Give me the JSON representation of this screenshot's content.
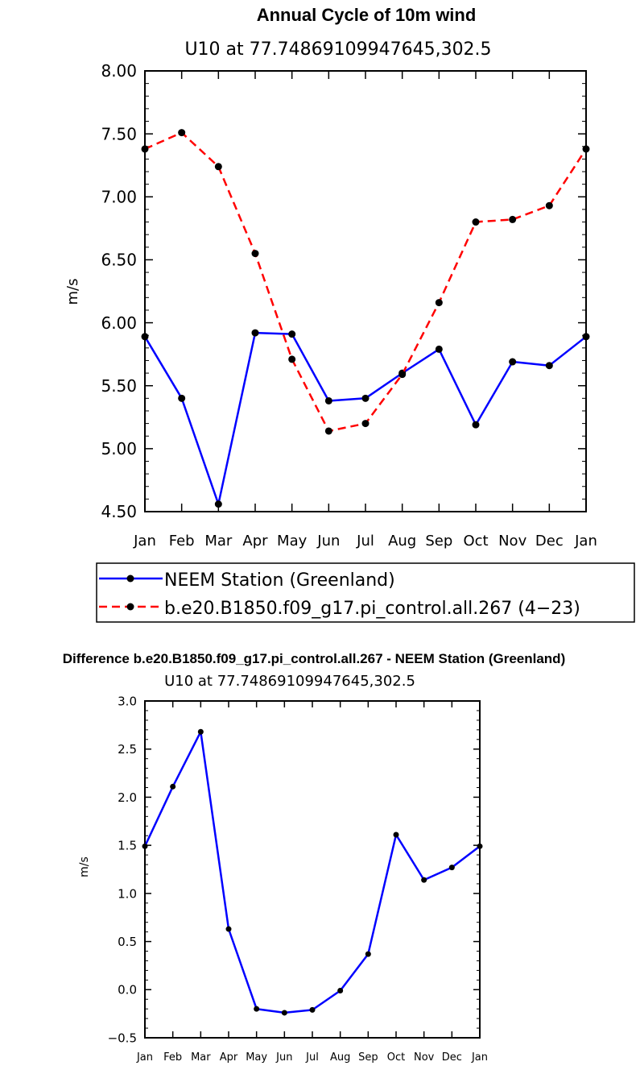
{
  "chart_data": [
    {
      "type": "line",
      "title": "Annual Cycle of 10m wind",
      "subtitle": "U10 at 77.74869109947645,302.5",
      "ylabel": "m/s",
      "xlabel": "",
      "categories": [
        "Jan",
        "Feb",
        "Mar",
        "Apr",
        "May",
        "Jun",
        "Jul",
        "Aug",
        "Sep",
        "Oct",
        "Nov",
        "Dec",
        "Jan"
      ],
      "ylim": [
        4.5,
        8.0
      ],
      "yticks": [
        "4.50",
        "5.00",
        "5.50",
        "6.00",
        "6.50",
        "7.00",
        "7.50",
        "8.00"
      ],
      "ytick_values": [
        4.5,
        5.0,
        5.5,
        6.0,
        6.5,
        7.0,
        7.5,
        8.0
      ],
      "grid": false,
      "legend_position": "bottom",
      "series": [
        {
          "name": "NEEM Station (Greenland)",
          "color": "#0000ff",
          "style": "solid",
          "values": [
            5.89,
            5.4,
            4.56,
            5.92,
            5.91,
            5.38,
            5.4,
            5.6,
            5.79,
            5.19,
            5.69,
            5.66,
            5.89
          ]
        },
        {
          "name": "b.e20.B1850.f09_g17.pi_control.all.267 (4−23)",
          "color": "#ff0000",
          "style": "dashed",
          "values": [
            7.38,
            7.51,
            7.24,
            6.55,
            5.71,
            5.14,
            5.2,
            5.59,
            6.16,
            6.8,
            6.82,
            6.93,
            7.38
          ]
        }
      ]
    },
    {
      "type": "line",
      "title": "Difference b.e20.B1850.f09_g17.pi_control.all.267 - NEEM Station (Greenland)",
      "subtitle": "U10 at 77.74869109947645,302.5",
      "ylabel": "m/s",
      "xlabel": "",
      "categories": [
        "Jan",
        "Feb",
        "Mar",
        "Apr",
        "May",
        "Jun",
        "Jul",
        "Aug",
        "Sep",
        "Oct",
        "Nov",
        "Dec",
        "Jan"
      ],
      "ylim": [
        -0.5,
        3.0
      ],
      "yticks": [
        "−0.5",
        "0.0",
        "0.5",
        "1.0",
        "1.5",
        "2.0",
        "2.5",
        "3.0"
      ],
      "ytick_values": [
        -0.5,
        0.0,
        0.5,
        1.0,
        1.5,
        2.0,
        2.5,
        3.0
      ],
      "grid": false,
      "series": [
        {
          "name": "Difference",
          "color": "#0000ff",
          "style": "solid",
          "values": [
            1.49,
            2.11,
            2.68,
            0.63,
            -0.2,
            -0.24,
            -0.21,
            -0.01,
            0.37,
            1.61,
            1.14,
            1.27,
            1.49
          ]
        }
      ]
    }
  ]
}
